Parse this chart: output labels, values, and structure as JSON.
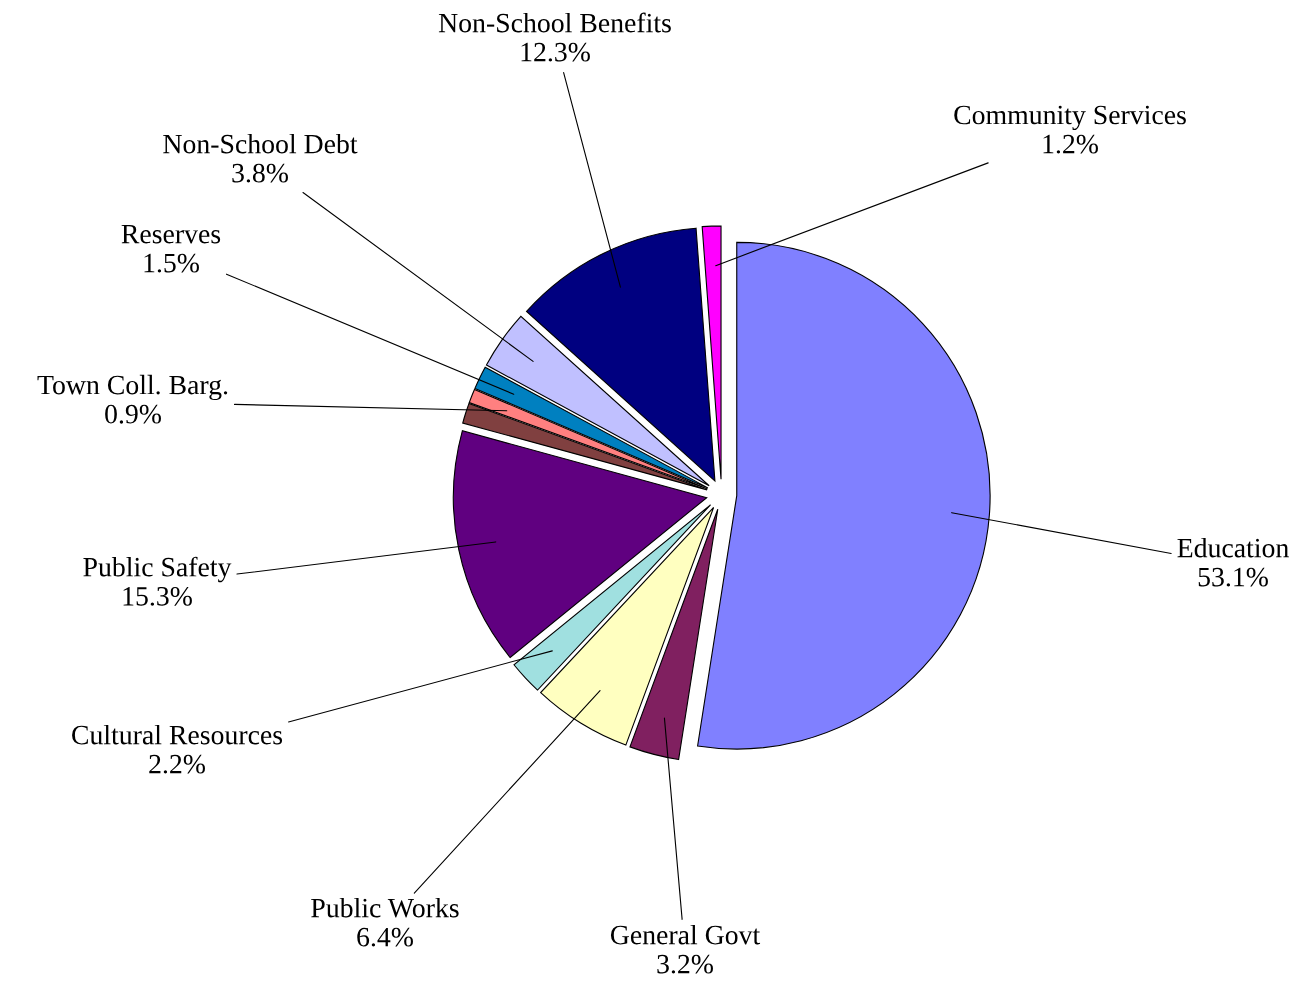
{
  "chart_data": {
    "type": "pie",
    "categories": [
      "Education",
      "General Govt",
      "Public Works",
      "Cultural Resources",
      "Public Safety",
      null,
      "Town Coll. Barg.",
      "Reserves",
      "Non-School Debt",
      "Non-School Benefits",
      "Community Services"
    ],
    "values": [
      53.1,
      3.2,
      6.4,
      2.2,
      15.3,
      1.3,
      0.9,
      1.5,
      3.8,
      12.3,
      1.2
    ],
    "value_labels": [
      "53.1%",
      "3.2%",
      "6.4%",
      "2.2%",
      "15.3%",
      null,
      "0.9%",
      "1.5%",
      "3.8%",
      "12.3%",
      "1.2%"
    ],
    "colors": [
      "#8080ff",
      "#802060",
      "#ffffc0",
      "#a0e0e0",
      "#600080",
      "#804040",
      "#ff8080",
      "#0080c0",
      "#c0c0ff",
      "#000080",
      "#ff00ff"
    ]
  }
}
